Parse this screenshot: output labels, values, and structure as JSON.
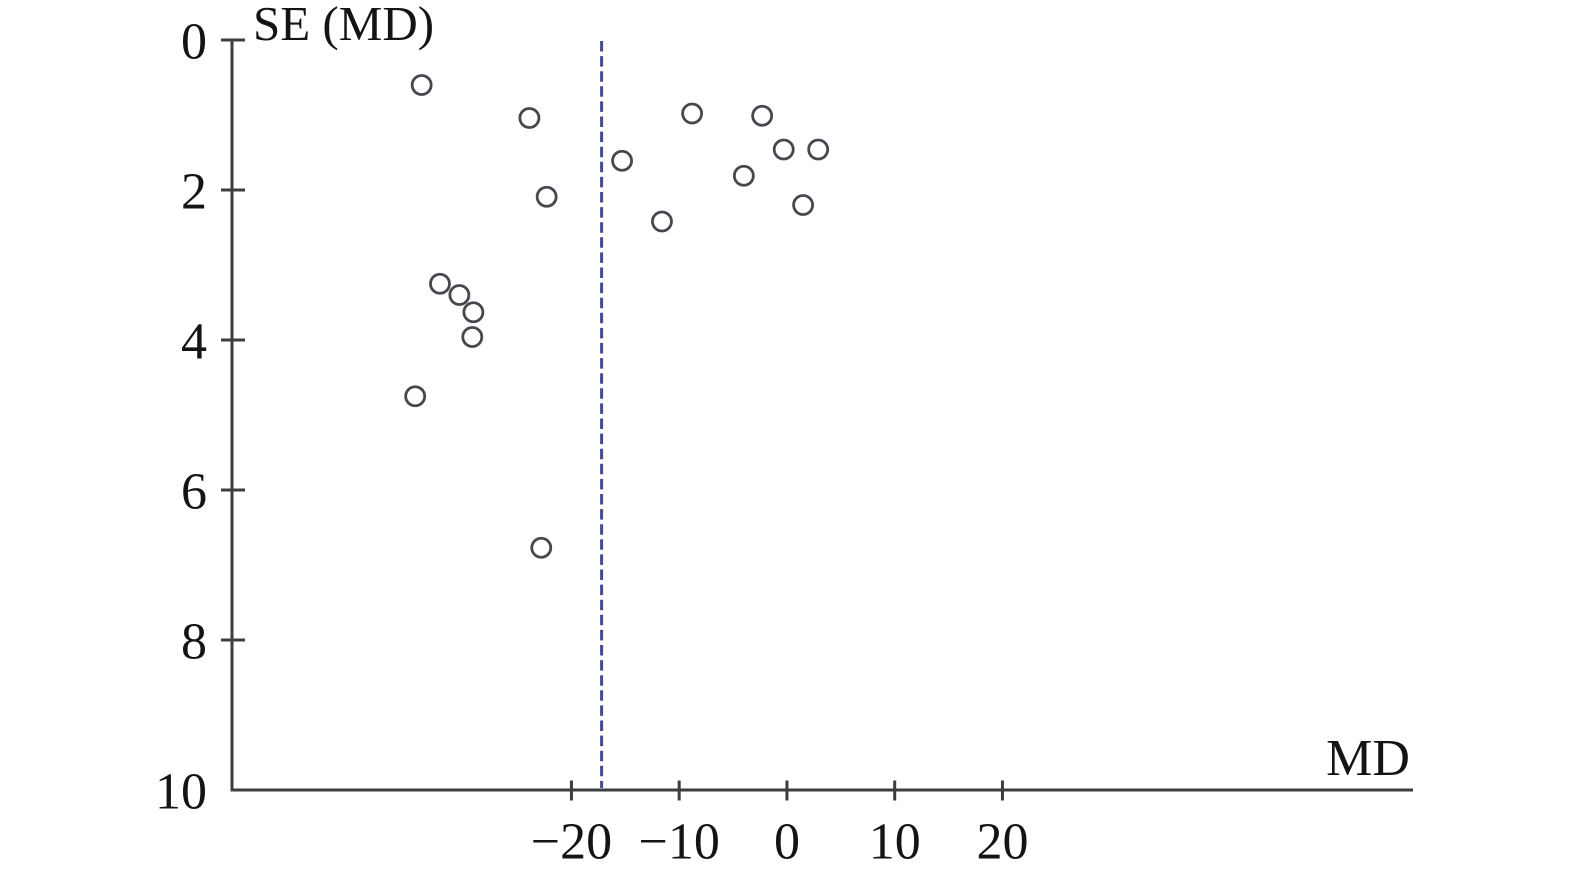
{
  "figure": {
    "background": "#ffffff"
  },
  "chart_data": {
    "type": "scatter",
    "title": "",
    "xlabel": "MD",
    "ylabel": "SE (MD)",
    "xlim": [
      -51.5,
      58.1
    ],
    "ylim": [
      0,
      10
    ],
    "y_inverted": true,
    "grid": false,
    "legend": "none",
    "x_ticks": [
      -20,
      -10,
      0,
      10,
      20
    ],
    "x_tick_labels": [
      "−20",
      "−10",
      "0",
      "10",
      "20"
    ],
    "y_ticks": [
      0,
      2,
      4,
      6,
      8,
      10
    ],
    "y_tick_labels": [
      "0",
      "2",
      "4",
      "6",
      "8",
      "10"
    ],
    "y_tick_marks_at": [
      0,
      2,
      4,
      6,
      8
    ],
    "axis_color": "#3d3d41",
    "text_color": "#141414",
    "reference_line": {
      "orientation": "vertical",
      "value": -17.2,
      "style": "dashed",
      "color": "#3e4a9c"
    },
    "marker": {
      "shape": "open-circle",
      "radius_px": 9.5,
      "stroke": "#47474f",
      "stroke_width": 2.8,
      "fill": "none"
    },
    "points": [
      {
        "x": -33.9,
        "y": 0.6
      },
      {
        "x": -23.9,
        "y": 1.04
      },
      {
        "x": -15.3,
        "y": 1.61
      },
      {
        "x": -22.3,
        "y": 2.09
      },
      {
        "x": -8.8,
        "y": 0.98
      },
      {
        "x": -2.3,
        "y": 1.01
      },
      {
        "x": -0.3,
        "y": 1.46
      },
      {
        "x": 2.9,
        "y": 1.46
      },
      {
        "x": -4.0,
        "y": 1.81
      },
      {
        "x": 1.5,
        "y": 2.2
      },
      {
        "x": -11.6,
        "y": 2.42
      },
      {
        "x": -32.2,
        "y": 3.25
      },
      {
        "x": -30.4,
        "y": 3.4
      },
      {
        "x": -29.1,
        "y": 3.63
      },
      {
        "x": -29.2,
        "y": 3.96
      },
      {
        "x": -34.5,
        "y": 4.75
      },
      {
        "x": -22.8,
        "y": 6.77
      }
    ]
  }
}
